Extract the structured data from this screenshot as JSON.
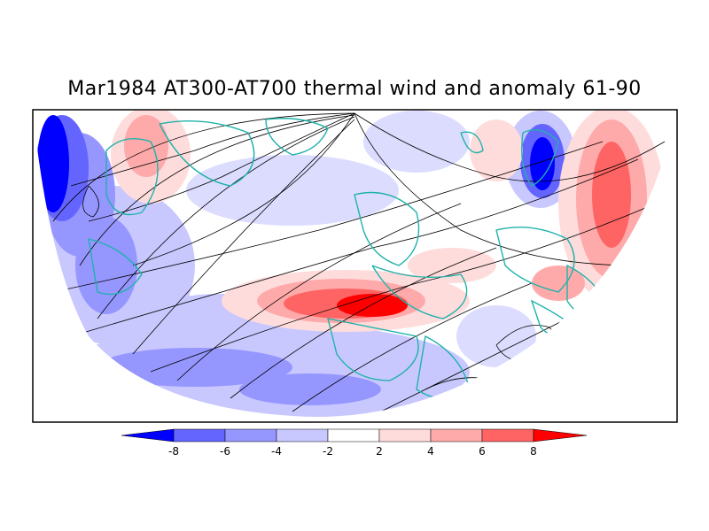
{
  "title": "Mar1984 AT300-AT700 thermal wind and anomaly 61-90",
  "legend": {
    "ticks": [
      "-8",
      "-6",
      "-4",
      "-2",
      "2",
      "4",
      "6",
      "8"
    ],
    "colors": [
      "#0000ff",
      "#6464ff",
      "#9696ff",
      "#c8c8ff",
      "#dcdcff",
      "#ffffff",
      "#ffdcdc",
      "#ffaaaa",
      "#ff6464",
      "#ff0000"
    ]
  },
  "colors": {
    "coastline": "#20b2aa",
    "streamline": "#000000",
    "frame": "#000000"
  }
}
